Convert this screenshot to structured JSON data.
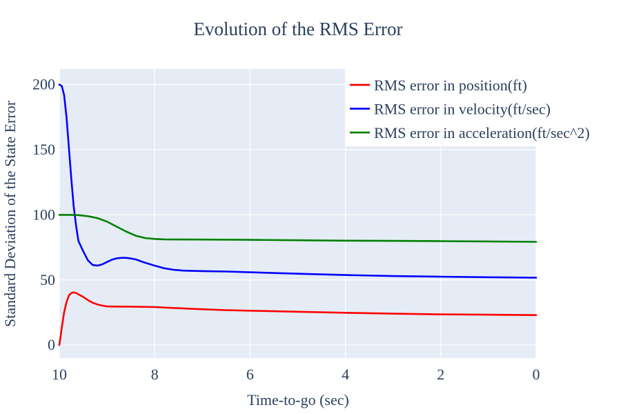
{
  "chart_data": {
    "type": "line",
    "title": "Evolution of the RMS Error",
    "xlabel": "Time-to-go (sec)",
    "ylabel": "Standard Deviation of the State Error",
    "xlim": [
      10,
      0
    ],
    "ylim": [
      -10,
      212
    ],
    "x_reversed": true,
    "xticks": [
      10,
      8,
      6,
      4,
      2,
      0
    ],
    "yticks": [
      0,
      50,
      100,
      150,
      200
    ],
    "grid": true,
    "legend_position": "top-right",
    "series": [
      {
        "name": "RMS error in position(ft)",
        "color": "#ff0000",
        "x": [
          10,
          9.95,
          9.9,
          9.85,
          9.8,
          9.75,
          9.7,
          9.65,
          9.6,
          9.5,
          9.4,
          9.3,
          9.2,
          9.1,
          9.0,
          8.8,
          8.5,
          8.0,
          7.5,
          7.0,
          6.5,
          6.0,
          5.0,
          4.0,
          3.0,
          2.0,
          1.0,
          0
        ],
        "y": [
          0,
          13,
          25,
          33,
          38,
          40,
          40.5,
          40,
          39,
          37,
          34.5,
          32.5,
          31.2,
          30.3,
          29.7,
          29.6,
          29.5,
          29.2,
          28.3,
          27.5,
          26.8,
          26.4,
          25.6,
          24.8,
          24.1,
          23.6,
          23.3,
          23
        ]
      },
      {
        "name": "RMS error in velocity(ft/sec)",
        "color": "#0000ff",
        "x": [
          10,
          9.95,
          9.9,
          9.85,
          9.8,
          9.75,
          9.7,
          9.65,
          9.6,
          9.5,
          9.4,
          9.3,
          9.2,
          9.1,
          9.0,
          8.9,
          8.8,
          8.7,
          8.6,
          8.5,
          8.4,
          8.3,
          8.2,
          8.0,
          7.8,
          7.6,
          7.4,
          7.0,
          6.5,
          6.0,
          5.0,
          4.0,
          3.0,
          2.0,
          1.0,
          0
        ],
        "y": [
          200,
          199,
          192,
          175,
          152,
          128,
          107,
          92,
          80,
          72,
          65,
          61.5,
          61,
          62,
          63.8,
          65.5,
          66.6,
          67,
          67,
          66.5,
          65.8,
          64.5,
          63.2,
          61,
          59,
          57.8,
          57.2,
          56.8,
          56.5,
          55.9,
          54.8,
          53.8,
          53,
          52.5,
          52.1,
          51.8
        ]
      },
      {
        "name": "RMS error in acceleration(ft/sec^2)",
        "color": "#008000",
        "x": [
          10,
          9.8,
          9.6,
          9.4,
          9.2,
          9.0,
          8.8,
          8.6,
          8.4,
          8.2,
          8.0,
          7.8,
          7.5,
          7.0,
          6.0,
          5.0,
          4.0,
          3.0,
          2.0,
          1.0,
          0
        ],
        "y": [
          100,
          100,
          99.8,
          99,
          97.5,
          94.8,
          91,
          87.2,
          84,
          82.2,
          81.5,
          81.2,
          81.1,
          81,
          80.8,
          80.5,
          80.2,
          80,
          79.8,
          79.6,
          79.3
        ]
      }
    ]
  }
}
